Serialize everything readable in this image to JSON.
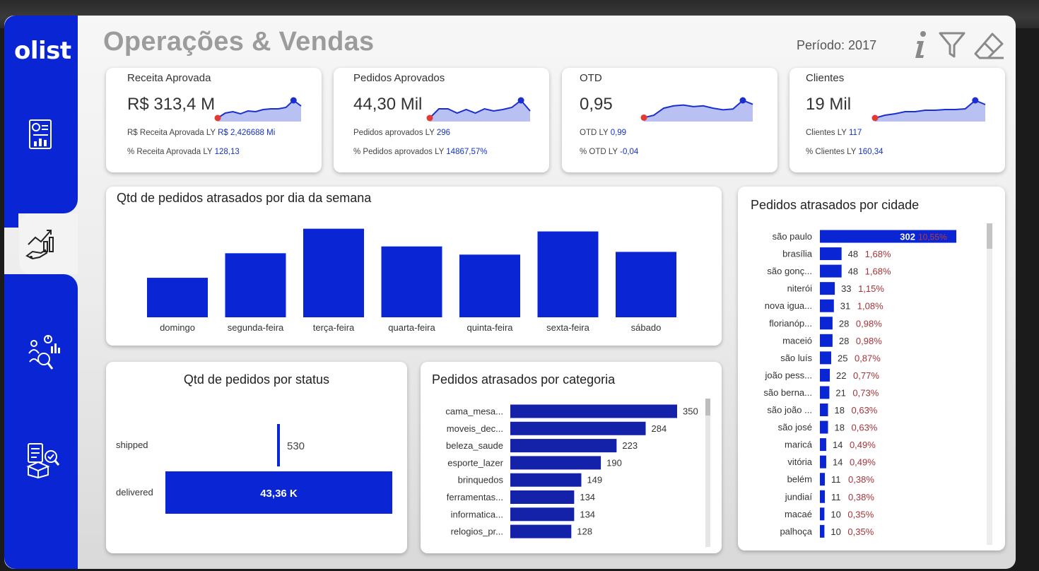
{
  "app": {
    "logo": "olist",
    "title": "Operações & Vendas",
    "period": "Período: 2017"
  },
  "header_icons": [
    "info-icon",
    "filter-icon",
    "eraser-icon"
  ],
  "sidebar": {
    "items": [
      {
        "name": "report-icon",
        "active": false
      },
      {
        "name": "sales-growth-icon",
        "active": true
      },
      {
        "name": "customer-analytics-icon",
        "active": false
      },
      {
        "name": "logistics-icon",
        "active": false
      }
    ]
  },
  "colors": {
    "brand": "#0a26d4",
    "bar": "#0a26d4",
    "bar_dark": "#1322a8",
    "sparkline": "#1a2fd0",
    "spark_fill": "#b9c0f2",
    "spark_start": "#e53935",
    "pct": "#a4343a"
  },
  "kpis": [
    {
      "title": "Receita Aprovada",
      "value": "R$ 313,4 M",
      "sub1_label": "R$ Receita Aprovada LY",
      "sub1_value": "R$ 2,426688 Mi",
      "sub2_label": "% Receita Aprovada LY",
      "sub2_value": "128,13",
      "spark": [
        5,
        12,
        14,
        11,
        15,
        14,
        17,
        18,
        18,
        20,
        30,
        22
      ]
    },
    {
      "title": "Pedidos Aprovados",
      "value": "44,30 Mil",
      "sub1_label": "Pedidos aprovados LY",
      "sub1_value": "296",
      "sub2_label": "% Pedidos aprovados LY",
      "sub2_value": "14867,57%",
      "spark": [
        5,
        18,
        18,
        12,
        17,
        12,
        18,
        15,
        17,
        20,
        30,
        15
      ]
    },
    {
      "title": "OTD",
      "value": "0,95",
      "sub1_label": "OTD LY",
      "sub1_value": "0,99",
      "sub2_label": "% OTD LY",
      "sub2_value": "-0,04",
      "spark": [
        5,
        8,
        17,
        20,
        21,
        19,
        20,
        17,
        15,
        16,
        27,
        22
      ]
    },
    {
      "title": "Clientes",
      "value": "19 Mil",
      "sub1_label": "Clientes LY",
      "sub1_value": "117",
      "sub2_label": "% Clientes LY",
      "sub2_value": "160,34",
      "spark": [
        5,
        9,
        11,
        14,
        14,
        16,
        16,
        17,
        17,
        18,
        30,
        24
      ]
    }
  ],
  "weekday_chart": {
    "title": "Qtd de pedidos atrasados por dia da semana",
    "chart_data": {
      "type": "bar",
      "categories": [
        "domingo",
        "segunda-feira",
        "terça-feira",
        "quarta-feira",
        "quinta-feira",
        "sexta-feira",
        "sábado"
      ],
      "values": [
        290,
        470,
        650,
        520,
        460,
        630,
        480
      ],
      "ylim": [
        0,
        700
      ]
    }
  },
  "status_chart": {
    "title": "Qtd de pedidos por status",
    "chart_data": {
      "type": "bar",
      "categories": [
        "shipped",
        "delivered"
      ],
      "values": [
        530,
        43360
      ],
      "data_labels": [
        "530",
        "43,36 K"
      ]
    }
  },
  "category_chart": {
    "title": "Pedidos atrasados por categoria",
    "chart_data": {
      "type": "bar",
      "categories": [
        "cama_mesa...",
        "moveis_dec...",
        "beleza_saude",
        "esporte_lazer",
        "brinquedos",
        "ferramentas...",
        "informatica...",
        "relogios_pr..."
      ],
      "values": [
        350,
        284,
        223,
        190,
        149,
        134,
        134,
        128
      ]
    }
  },
  "city_chart": {
    "title": "Pedidos atrasados por cidade",
    "chart_data": {
      "type": "bar",
      "categories": [
        "são paulo",
        "brasília",
        "são gonç...",
        "niterói",
        "nova igua...",
        "florianóp...",
        "maceió",
        "são luís",
        "joão pess...",
        "são berna...",
        "são joão ...",
        "são josé",
        "maricá",
        "vitória",
        "belém",
        "jundiaí",
        "macaé",
        "palhoça"
      ],
      "values": [
        302,
        48,
        48,
        33,
        31,
        28,
        28,
        25,
        22,
        21,
        18,
        18,
        14,
        14,
        11,
        11,
        10,
        10
      ],
      "percent_labels": [
        "10,55%",
        "1,68%",
        "1,68%",
        "1,15%",
        "1,08%",
        "0,98%",
        "0,98%",
        "0,87%",
        "0,77%",
        "0,73%",
        "0,63%",
        "0,63%",
        "0,49%",
        "0,49%",
        "0,38%",
        "0,38%",
        "0,35%",
        "0,35%"
      ]
    }
  }
}
